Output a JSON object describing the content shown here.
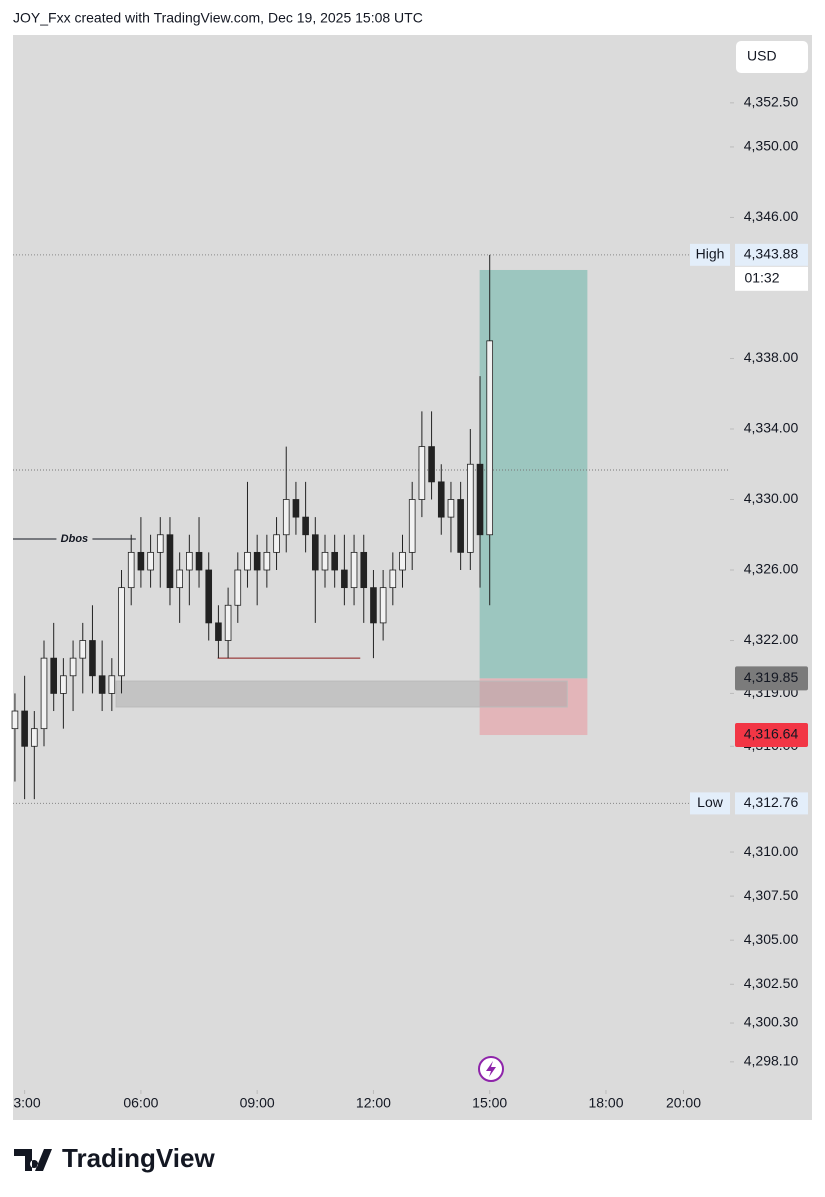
{
  "chart_data": {
    "type": "candlestick",
    "header": "JOY_Fxx created with TradingView.com, Dec 19, 2025 15:08 UTC",
    "currency": "USD",
    "footer_logo": "TradingView",
    "x": [
      2.75,
      3,
      3.25,
      3.5,
      3.75,
      4,
      4.25,
      4.5,
      4.75,
      5,
      5.25,
      5.5,
      5.75,
      6,
      6.25,
      6.5,
      6.75,
      7,
      7.25,
      7.5,
      7.75,
      8,
      8.25,
      8.5,
      8.75,
      9,
      9.25,
      9.5,
      9.75,
      10,
      10.25,
      10.5,
      10.75,
      11,
      11.25,
      11.5,
      11.75,
      12,
      12.25,
      12.5,
      12.75,
      13,
      13.25,
      13.5,
      13.75,
      14,
      14.25,
      14.5,
      14.75,
      15
    ],
    "open": [
      4317,
      4318,
      4316,
      4317,
      4321,
      4319,
      4320,
      4321,
      4322,
      4320,
      4319,
      4320,
      4325,
      4327,
      4326,
      4327,
      4328,
      4325,
      4326,
      4327,
      4326,
      4323,
      4322,
      4324,
      4326,
      4327,
      4326,
      4327,
      4328,
      4330,
      4329,
      4328,
      4326,
      4327,
      4326,
      4325,
      4327,
      4325,
      4323,
      4325,
      4326,
      4327,
      4330,
      4333,
      4331,
      4329,
      4330,
      4327,
      4332,
      4328
    ],
    "high": [
      4319,
      4320,
      4318,
      4322,
      4323,
      4321,
      4322,
      4323,
      4324,
      4322,
      4321,
      4326,
      4328,
      4329,
      4328,
      4329,
      4329,
      4327,
      4328,
      4329,
      4327,
      4324,
      4325,
      4327,
      4331,
      4328,
      4328,
      4329,
      4333,
      4331,
      4331,
      4329,
      4328,
      4328,
      4328,
      4328,
      4328,
      4326,
      4326,
      4327,
      4328,
      4331,
      4335,
      4335,
      4332,
      4331,
      4331,
      4334,
      4337,
      4343.88
    ],
    "low": [
      4314,
      4313,
      4313,
      4316,
      4318,
      4317,
      4318,
      4319,
      4319,
      4318,
      4318,
      4319,
      4324,
      4325,
      4325,
      4325,
      4324,
      4323,
      4324,
      4325,
      4322,
      4321,
      4321,
      4323,
      4325,
      4324,
      4325,
      4326,
      4327,
      4328,
      4327,
      4323,
      4325,
      4325,
      4324,
      4324,
      4323,
      4321,
      4322,
      4324,
      4325,
      4326,
      4329,
      4330,
      4328,
      4327,
      4326,
      4326,
      4325,
      4324
    ],
    "close": [
      4318,
      4316,
      4317,
      4321,
      4319,
      4320,
      4321,
      4322,
      4320,
      4319,
      4320,
      4325,
      4327,
      4326,
      4327,
      4328,
      4325,
      4326,
      4327,
      4326,
      4323,
      4322,
      4324,
      4326,
      4327,
      4326,
      4327,
      4328,
      4330,
      4329,
      4328,
      4326,
      4327,
      4326,
      4325,
      4327,
      4325,
      4323,
      4325,
      4326,
      4327,
      4330,
      4333,
      4331,
      4329,
      4330,
      4327,
      4332,
      4328,
      4339
    ],
    "xlim": [
      2.7,
      21.2
    ],
    "xticks": [
      {
        "value": 3,
        "label": "3:00"
      },
      {
        "value": 6,
        "label": "06:00"
      },
      {
        "value": 9,
        "label": "09:00"
      },
      {
        "value": 12,
        "label": "12:00"
      },
      {
        "value": 15,
        "label": "15:00"
      },
      {
        "value": 18,
        "label": "18:00"
      },
      {
        "value": 20,
        "label": "20:00"
      }
    ],
    "ylim": [
      4294.8,
      4356.35
    ],
    "yticks": [
      {
        "value": 4352.5,
        "label": "4,352.50"
      },
      {
        "value": 4350,
        "label": "4,350.00"
      },
      {
        "value": 4346,
        "label": "4,346.00"
      },
      {
        "value": 4338,
        "label": "4,338.00"
      },
      {
        "value": 4334,
        "label": "4,334.00"
      },
      {
        "value": 4330,
        "label": "4,330.00"
      },
      {
        "value": 4326,
        "label": "4,326.00"
      },
      {
        "value": 4322,
        "label": "4,322.00"
      },
      {
        "value": 4319,
        "label": "4,319.00"
      },
      {
        "value": 4316,
        "label": "4,316.00"
      },
      {
        "value": 4310,
        "label": "4,310.00"
      },
      {
        "value": 4307.5,
        "label": "4,307.50"
      },
      {
        "value": 4305,
        "label": "4,305.00"
      },
      {
        "value": 4302.5,
        "label": "4,302.50"
      },
      {
        "value": 4300.3,
        "label": "4,300.30"
      },
      {
        "value": 4298.1,
        "label": "4,298.10"
      }
    ],
    "levels": [
      {
        "name": "High",
        "value": 4343.88,
        "label": "4,343.88"
      },
      {
        "name": "Low",
        "value": 4312.76,
        "label": "4,312.76"
      }
    ],
    "countdown": "01:32",
    "price_labels": [
      {
        "value": 4319.85,
        "label": "4,319.85",
        "color": "#7b7b7b"
      },
      {
        "value": 4316.64,
        "label": "4,316.64",
        "color": "#f23645"
      }
    ],
    "dotted_line": 4331.67,
    "dbos": {
      "text": "Dbos",
      "value": 4327.76,
      "x": [
        2.7,
        5.87
      ]
    },
    "red_line": {
      "value": 4321,
      "x": [
        7.98,
        11.66
      ],
      "color": "#8b1a1a"
    },
    "zone": {
      "y": [
        4318.23,
        4319.7
      ],
      "x": [
        5.36,
        17.0
      ]
    },
    "position": {
      "x": [
        14.74,
        17.52
      ],
      "entry": 4319.85,
      "target": 4343.02,
      "stop": 4316.64
    }
  }
}
